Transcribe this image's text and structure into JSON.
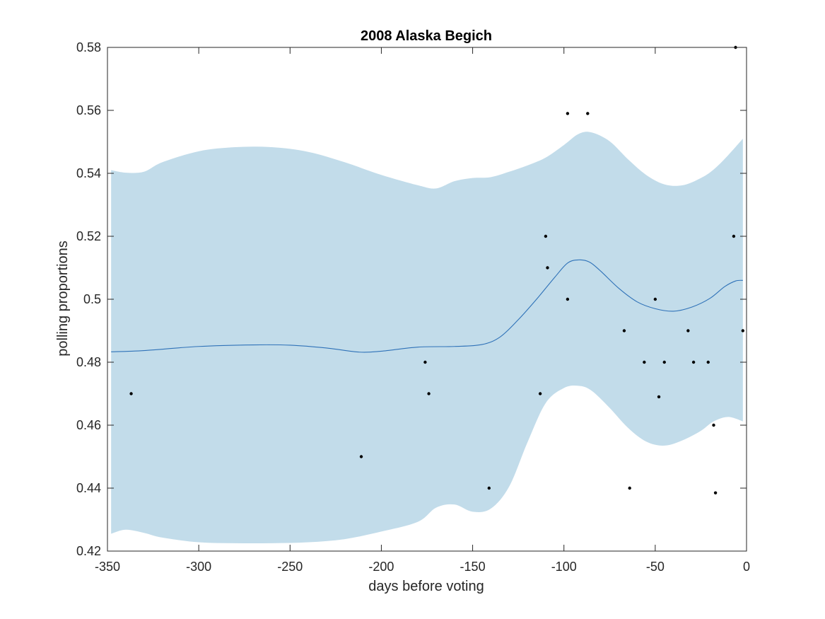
{
  "chart_data": {
    "type": "line",
    "title": "2008 Alaska Begich",
    "xlabel": "days before voting",
    "ylabel": "polling proportions",
    "xlim": [
      -350,
      0
    ],
    "ylim": [
      0.42,
      0.58
    ],
    "xticks": [
      -350,
      -300,
      -250,
      -200,
      -150,
      -100,
      -50,
      0
    ],
    "xtick_labels": [
      "-350",
      "-300",
      "-250",
      "-200",
      "-150",
      "-100",
      "-50",
      "0"
    ],
    "yticks": [
      0.42,
      0.44,
      0.46,
      0.48,
      0.5,
      0.52,
      0.54,
      0.56,
      0.58
    ],
    "ytick_labels": [
      "0.42",
      "0.44",
      "0.46",
      "0.48",
      "0.5",
      "0.52",
      "0.54",
      "0.56",
      "0.58"
    ],
    "grid": false,
    "colors": {
      "band": "#c2dcea",
      "mean_line": "#2f72b8",
      "points": "#000000",
      "axes": "#262626"
    },
    "mean_line": {
      "x": [
        -348,
        -330,
        -300,
        -270,
        -250,
        -230,
        -212,
        -200,
        -180,
        -160,
        -145,
        -135,
        -125,
        -115,
        -105,
        -98,
        -92,
        -86,
        -80,
        -70,
        -60,
        -50,
        -40,
        -30,
        -20,
        -12,
        -6,
        -2
      ],
      "y": [
        0.4833,
        0.4837,
        0.485,
        0.4855,
        0.4854,
        0.4845,
        0.4832,
        0.4835,
        0.4848,
        0.485,
        0.4856,
        0.488,
        0.4935,
        0.5,
        0.507,
        0.5115,
        0.5125,
        0.5118,
        0.509,
        0.5035,
        0.4992,
        0.497,
        0.4962,
        0.4975,
        0.5003,
        0.504,
        0.5058,
        0.506
      ]
    },
    "confidence_band": {
      "x": [
        -348,
        -340,
        -330,
        -320,
        -300,
        -280,
        -260,
        -240,
        -220,
        -200,
        -180,
        -170,
        -160,
        -150,
        -140,
        -130,
        -120,
        -110,
        -100,
        -92,
        -85,
        -75,
        -65,
        -55,
        -45,
        -35,
        -25,
        -18,
        -10,
        -2
      ],
      "upper": [
        0.541,
        0.5402,
        0.5405,
        0.5435,
        0.547,
        0.5483,
        0.5483,
        0.5468,
        0.5435,
        0.5395,
        0.5362,
        0.5352,
        0.5375,
        0.5385,
        0.5388,
        0.5405,
        0.5425,
        0.545,
        0.549,
        0.5525,
        0.553,
        0.5502,
        0.5445,
        0.5395,
        0.5365,
        0.5362,
        0.5385,
        0.5412,
        0.5458,
        0.551
      ],
      "lower": [
        0.4255,
        0.4268,
        0.4258,
        0.4243,
        0.4228,
        0.4225,
        0.4225,
        0.4228,
        0.4238,
        0.4262,
        0.4293,
        0.4338,
        0.4348,
        0.4325,
        0.4335,
        0.4405,
        0.4545,
        0.467,
        0.4718,
        0.4725,
        0.471,
        0.4655,
        0.4592,
        0.4548,
        0.4535,
        0.4552,
        0.4582,
        0.4612,
        0.4626,
        0.4612
      ]
    },
    "points": {
      "x": [
        -337,
        -211,
        -176,
        -174,
        -141,
        -113,
        -110,
        -109,
        -98,
        -98,
        -87,
        -67,
        -64,
        -56,
        -50,
        -48,
        -45,
        -32,
        -29,
        -21,
        -18,
        -17,
        -7,
        -6,
        -2
      ],
      "y": [
        0.47,
        0.45,
        0.48,
        0.47,
        0.44,
        0.47,
        0.52,
        0.51,
        0.559,
        0.5,
        0.559,
        0.49,
        0.44,
        0.48,
        0.5,
        0.469,
        0.48,
        0.49,
        0.48,
        0.48,
        0.46,
        0.4385,
        0.52,
        0.58,
        0.49
      ]
    }
  }
}
